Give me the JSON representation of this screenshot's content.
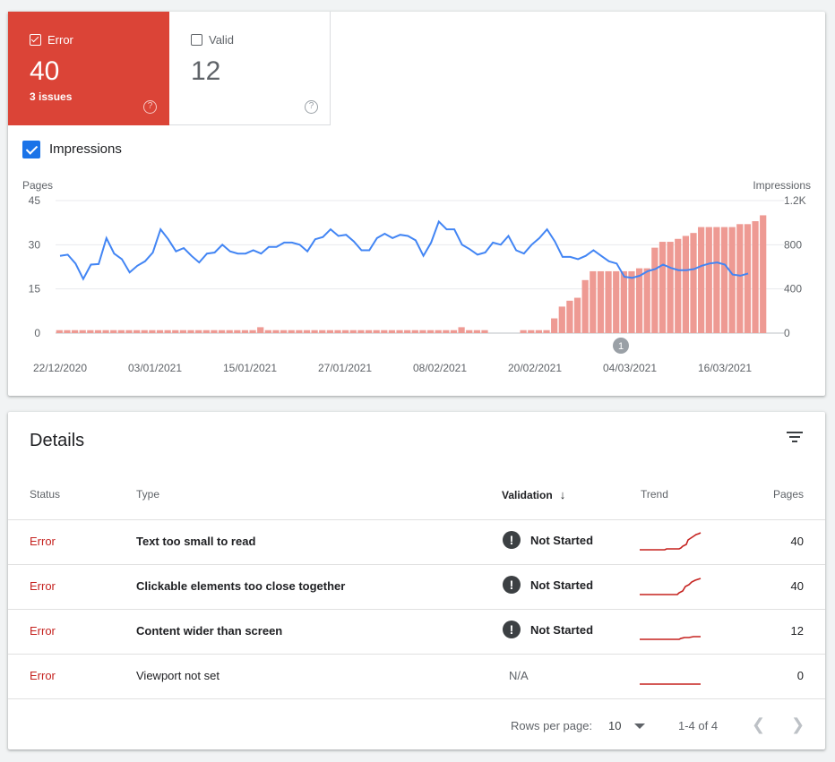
{
  "summary": {
    "error": {
      "label": "Error",
      "count": "40",
      "sub": "3 issues",
      "help_icon": "help-circle-icon"
    },
    "valid": {
      "label": "Valid",
      "count": "12",
      "help_icon": "help-circle-icon"
    }
  },
  "impressions_toggle": {
    "label": "Impressions",
    "checked": true
  },
  "colors": {
    "error": "#db4437",
    "bar": "#ee9a93",
    "line": "#4285f4",
    "status_text": "#c5221f",
    "trend": "#c5221f"
  },
  "chart_data": {
    "type": "bar+line",
    "left_axis_label": "Pages",
    "right_axis_label": "Impressions",
    "left_ticks": [
      "0",
      "15",
      "30",
      "45"
    ],
    "right_ticks": [
      "0",
      "400",
      "800",
      "1.2K"
    ],
    "left_ylim": [
      0,
      45
    ],
    "right_ylim": [
      0,
      1200
    ],
    "x_labels": [
      "22/12/2020",
      "03/01/2021",
      "15/01/2021",
      "27/01/2021",
      "08/02/2021",
      "20/02/2021",
      "04/03/2021",
      "16/03/2021"
    ],
    "annotation": "1",
    "series": [
      {
        "name": "Pages",
        "kind": "bar",
        "values": [
          1,
          1,
          1,
          1,
          1,
          1,
          1,
          1,
          1,
          1,
          1,
          1,
          1,
          1,
          1,
          1,
          1,
          1,
          1,
          1,
          1,
          1,
          1,
          1,
          1,
          1,
          2,
          1,
          1,
          1,
          1,
          1,
          1,
          1,
          1,
          1,
          1,
          1,
          1,
          1,
          1,
          1,
          1,
          1,
          1,
          1,
          1,
          1,
          1,
          1,
          1,
          1,
          2,
          1,
          1,
          1,
          0,
          0,
          0,
          0,
          1,
          1,
          1,
          1,
          5,
          9,
          11,
          12,
          18,
          21,
          21,
          21,
          21,
          21,
          21,
          22,
          22,
          29,
          31,
          31,
          32,
          33,
          34,
          36,
          36,
          36,
          36,
          36,
          37,
          37,
          38,
          40
        ]
      },
      {
        "name": "Impressions",
        "kind": "line",
        "values": [
          700,
          710,
          630,
          490,
          620,
          625,
          860,
          720,
          670,
          550,
          610,
          650,
          730,
          940,
          850,
          740,
          770,
          700,
          640,
          720,
          730,
          800,
          740,
          720,
          720,
          750,
          720,
          780,
          780,
          820,
          820,
          800,
          740,
          850,
          870,
          940,
          880,
          890,
          830,
          750,
          750,
          860,
          900,
          860,
          890,
          880,
          840,
          700,
          820,
          1010,
          940,
          940,
          800,
          760,
          710,
          730,
          820,
          800,
          880,
          750,
          720,
          800,
          860,
          940,
          830,
          690,
          690,
          670,
          700,
          750,
          700,
          650,
          630,
          510,
          500,
          520,
          560,
          580,
          620,
          590,
          570,
          570,
          580,
          610,
          630,
          640,
          620,
          530,
          520,
          540
        ]
      }
    ]
  },
  "details": {
    "title": "Details",
    "filter_icon": "filter-icon",
    "columns": {
      "status": "Status",
      "type": "Type",
      "validation": "Validation",
      "sort_icon": "arrow-down-icon",
      "trend": "Trend",
      "pages": "Pages"
    },
    "rows": [
      {
        "status": "Error",
        "type": "Text too small to read",
        "validation": "Not Started",
        "pages": "40"
      },
      {
        "status": "Error",
        "type": "Clickable elements too close together",
        "validation": "Not Started",
        "pages": "40"
      },
      {
        "status": "Error",
        "type": "Content wider than screen",
        "validation": "Not Started",
        "pages": "12"
      },
      {
        "status": "Error",
        "type": "Viewport not set",
        "validation": "N/A",
        "pages": "0"
      }
    ],
    "footer": {
      "rows_per_page_label": "Rows per page:",
      "rows_per_page": "10",
      "range": "1-4 of 4",
      "prev_icon": "chevron-left-icon",
      "next_icon": "chevron-right-icon"
    }
  }
}
